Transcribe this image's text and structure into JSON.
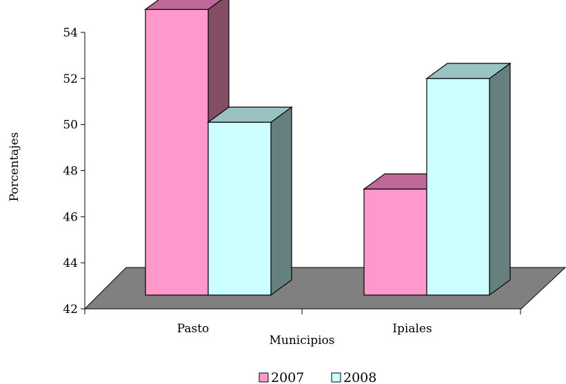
{
  "chart_data": {
    "type": "bar",
    "title": "",
    "xlabel": "Municipios",
    "ylabel": "Porcentajes",
    "categories": [
      "Pasto",
      "Ipiales"
    ],
    "series": [
      {
        "name": "2007",
        "values": [
          54.4,
          46.6
        ]
      },
      {
        "name": "2008",
        "values": [
          49.5,
          51.4
        ]
      }
    ],
    "ylim": [
      42,
      54
    ],
    "yticks": [
      "42",
      "44",
      "46",
      "48",
      "50",
      "52",
      "54"
    ],
    "legend_position": "bottom",
    "grid": false,
    "three_d": true,
    "colors": {
      "series_front": [
        "#ff99cc",
        "#ccffff"
      ],
      "series_top": [
        "#c0689a",
        "#99c2c2"
      ],
      "series_side": [
        "#864d66",
        "#667f7f"
      ],
      "floor": "#808080",
      "outline": "#000000"
    }
  }
}
